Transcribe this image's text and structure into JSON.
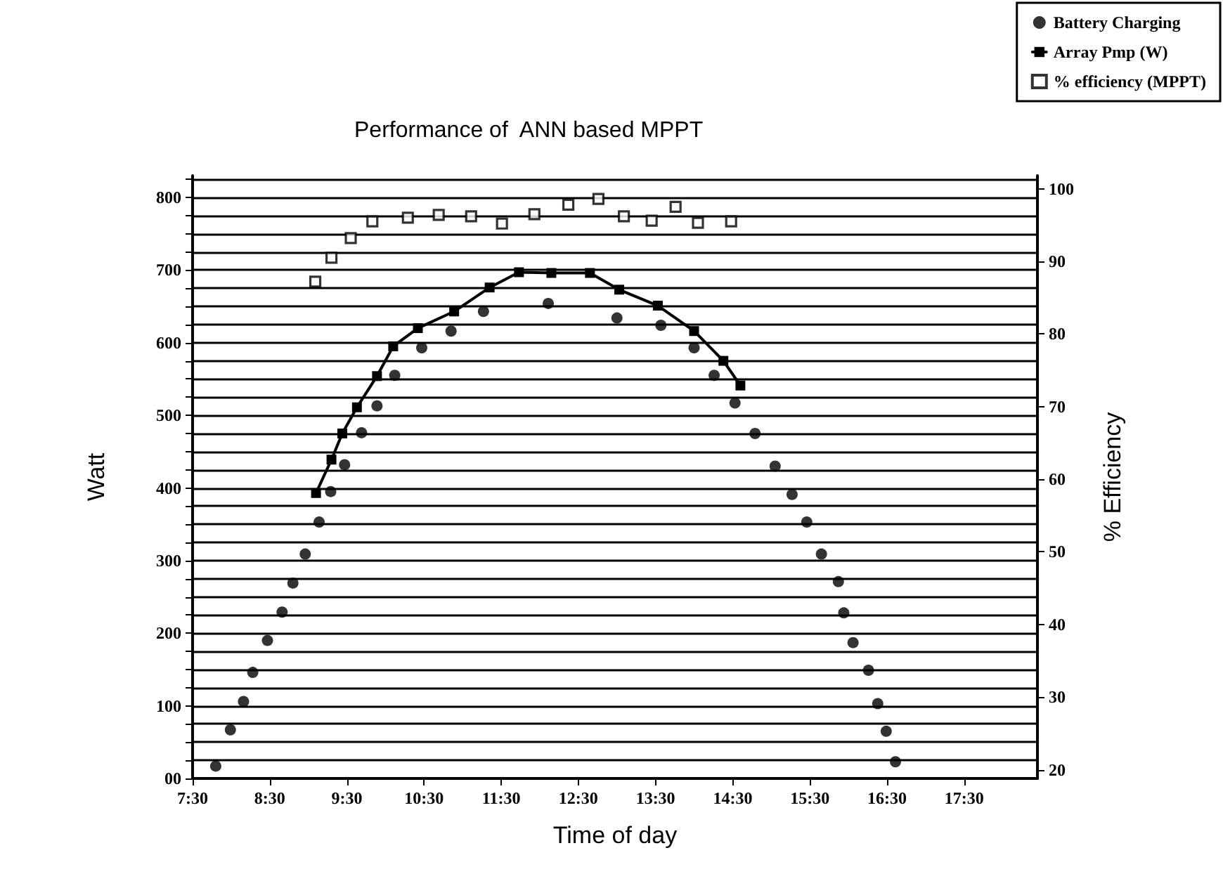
{
  "chart_data": {
    "type": "scatter",
    "title": "Performance of  ANN based MPPT",
    "xlabel": "Time of day",
    "ylabel": "Watt",
    "y2label": "% Efficiency",
    "xlim": [
      7.5,
      18.45
    ],
    "xticks": [
      {
        "value": 7.5,
        "label": "7:30"
      },
      {
        "value": 8.5,
        "label": "8:30"
      },
      {
        "value": 9.5,
        "label": "9:30"
      },
      {
        "value": 10.5,
        "label": "10:30"
      },
      {
        "value": 11.5,
        "label": "11:30"
      },
      {
        "value": 12.5,
        "label": "12:30"
      },
      {
        "value": 13.5,
        "label": "13:30"
      },
      {
        "value": 14.5,
        "label": "14:30"
      },
      {
        "value": 15.5,
        "label": "15:30"
      },
      {
        "value": 16.5,
        "label": "16:30"
      },
      {
        "value": 17.5,
        "label": "17:30"
      }
    ],
    "ylim": [
      0,
      830
    ],
    "yticks": [
      {
        "value": 0,
        "label": "00"
      },
      {
        "value": 25,
        "label": null
      },
      {
        "value": 50,
        "label": null
      },
      {
        "value": 75,
        "label": null
      },
      100,
      {
        "value": 125,
        "label": null
      },
      {
        "value": 150,
        "label": null
      },
      {
        "value": 175,
        "label": null
      },
      200,
      {
        "value": 225,
        "label": null
      },
      {
        "value": 250,
        "label": null
      },
      {
        "value": 275,
        "label": null
      },
      300,
      {
        "value": 325,
        "label": null
      },
      {
        "value": 350,
        "label": null
      },
      {
        "value": 375,
        "label": null
      },
      400,
      {
        "value": 425,
        "label": null
      },
      {
        "value": 450,
        "label": null
      },
      {
        "value": 475,
        "label": null
      },
      500,
      {
        "value": 525,
        "label": null
      },
      {
        "value": 550,
        "label": null
      },
      {
        "value": 575,
        "label": null
      },
      600,
      {
        "value": 625,
        "label": null
      },
      {
        "value": 650,
        "label": null
      },
      {
        "value": 675,
        "label": null
      },
      700,
      {
        "value": 725,
        "label": null
      },
      {
        "value": 750,
        "label": null
      },
      {
        "value": 775,
        "label": null
      },
      800,
      {
        "value": 825,
        "label": null
      }
    ],
    "y2lim": [
      18.8,
      101.8
    ],
    "y2ticks": [
      20,
      30,
      40,
      50,
      60,
      70,
      80,
      90,
      100
    ],
    "grid": "y",
    "legend": "top right",
    "series": [
      {
        "name": "Battery Charging",
        "marker": "circle",
        "color": "#000000",
        "x": [
          7.8,
          7.99,
          8.16,
          8.28,
          8.47,
          8.66,
          8.8,
          8.96,
          9.14,
          9.29,
          9.47,
          9.69,
          9.89,
          10.12,
          10.47,
          10.85,
          11.27,
          12.11,
          13.0,
          13.57,
          14.0,
          14.26,
          14.53,
          14.79,
          15.05,
          15.27,
          15.46,
          15.65,
          15.87,
          15.94,
          16.06,
          16.26,
          16.38,
          16.49,
          16.61
        ],
        "values": [
          17,
          67,
          106,
          146,
          190,
          229,
          269,
          309,
          353,
          395,
          432,
          476,
          513,
          555,
          593,
          616,
          643,
          654,
          634,
          624,
          593,
          555,
          517,
          475,
          430,
          391,
          353,
          309,
          271,
          228,
          187,
          149,
          103,
          65,
          23
        ]
      },
      {
        "name": "Array Pmp (W)",
        "type": "line",
        "marker": "square",
        "line_style": "solid",
        "color": "#000000",
        "x": [
          9.1,
          9.3,
          9.44,
          9.63,
          9.89,
          10.1,
          10.42,
          10.89,
          11.35,
          11.73,
          12.15,
          12.65,
          13.03,
          13.53,
          14.0,
          14.38,
          14.6
        ],
        "values": [
          393,
          439,
          475,
          511,
          554,
          595,
          620,
          643,
          676,
          697,
          696,
          696,
          673,
          651,
          616,
          575,
          541
        ]
      },
      {
        "name": "% efficiency (MPPT)",
        "marker": "square",
        "axis": "y2",
        "color": "#000000",
        "x": [
          9.09,
          9.3,
          9.55,
          9.83,
          10.29,
          10.69,
          11.11,
          11.51,
          11.93,
          12.37,
          12.76,
          13.09,
          13.45,
          13.76,
          14.05,
          14.48
        ],
        "values": [
          87.2,
          90.5,
          93.2,
          95.5,
          96.0,
          96.4,
          96.2,
          95.2,
          96.5,
          97.8,
          98.6,
          96.2,
          95.6,
          97.5,
          95.3,
          95.5
        ]
      }
    ]
  }
}
